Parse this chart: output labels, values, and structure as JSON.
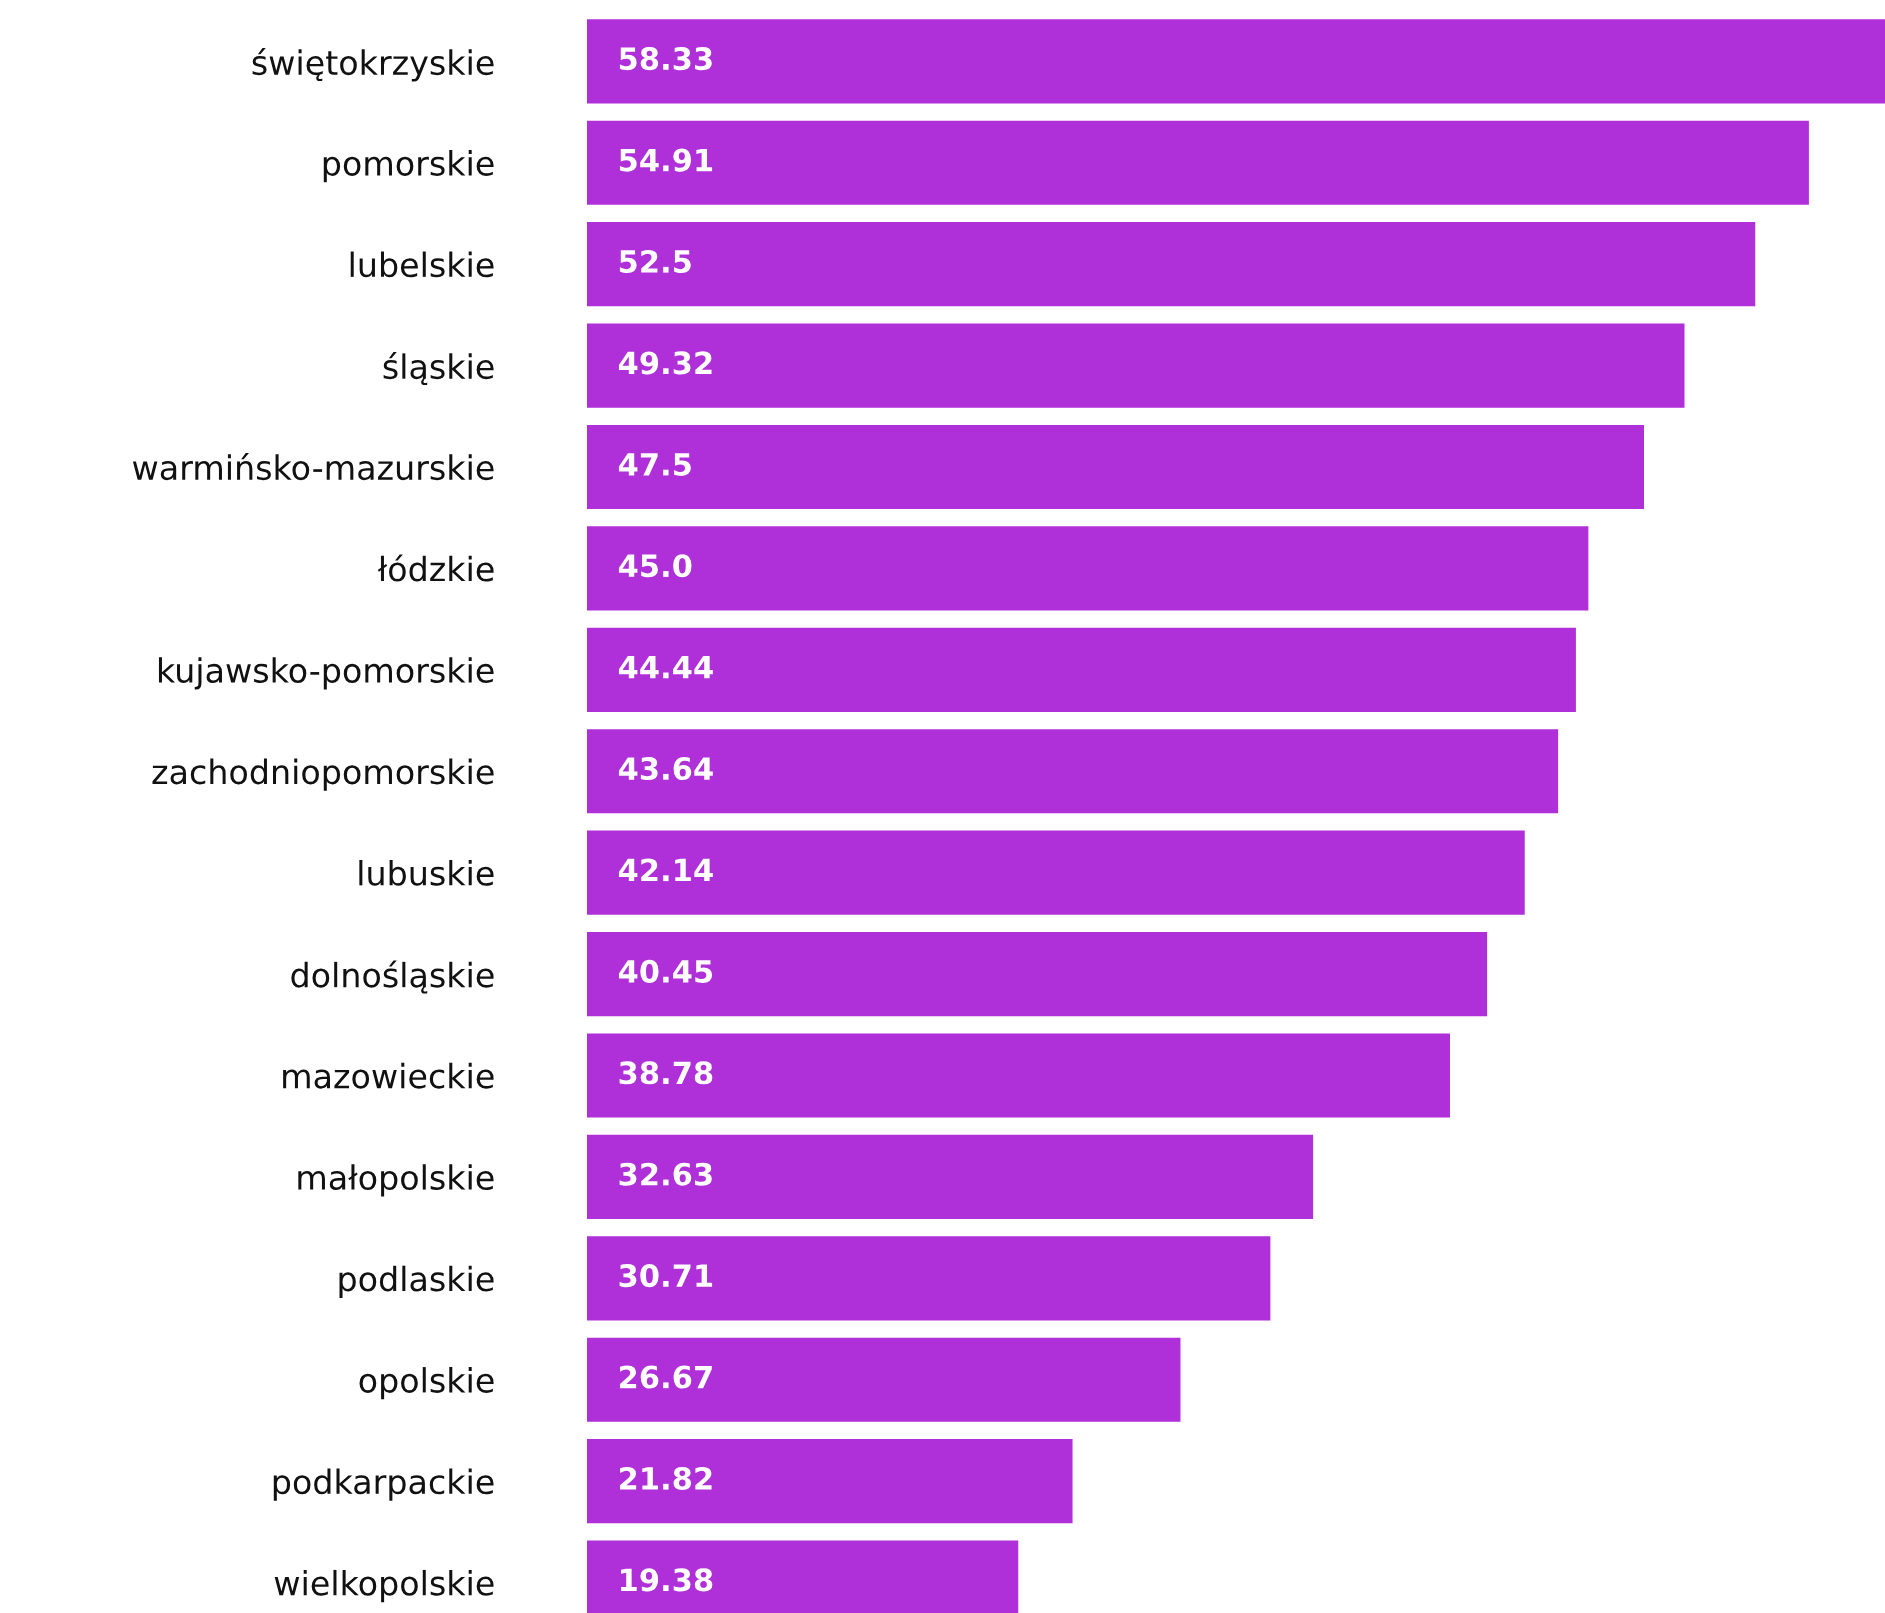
{
  "chart_data": {
    "type": "bar",
    "orientation": "horizontal",
    "data_labels": true,
    "categories": [
      "świętokrzyskie",
      "pomorskie",
      "lubelskie",
      "śląskie",
      "warmińsko-mazurskie",
      "łódzkie",
      "kujawsko-pomorskie",
      "zachodniopomorskie",
      "lubuskie",
      "dolnośląskie",
      "mazowieckie",
      "małopolskie",
      "podlaskie",
      "opolskie",
      "podkarpackie",
      "wielkopolskie"
    ],
    "values": [
      58.33,
      54.91,
      52.5,
      49.32,
      47.5,
      45.0,
      44.44,
      43.64,
      42.14,
      40.45,
      38.78,
      32.63,
      30.71,
      26.67,
      21.82,
      19.38
    ],
    "value_labels": [
      "58.33",
      "54.91",
      "52.5",
      "49.32",
      "47.5",
      "45.0",
      "44.44",
      "43.64",
      "42.14",
      "40.45",
      "38.78",
      "32.63",
      "30.71",
      "26.67",
      "21.82",
      "19.38"
    ],
    "color": "#af2fd9",
    "grid": false,
    "legend": false
  }
}
